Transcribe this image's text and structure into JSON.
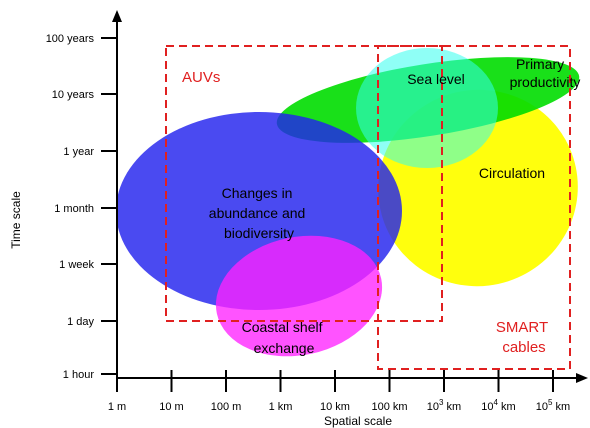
{
  "axes": {
    "y_label": "Time scale",
    "x_label": "Spatial scale",
    "y_ticks": [
      "1 hour",
      "1 day",
      "1 week",
      "1 month",
      "1 year",
      "10 years",
      "100 years"
    ],
    "x_ticks": [
      {
        "base": "1 m",
        "sup": ""
      },
      {
        "base": "10 m",
        "sup": ""
      },
      {
        "base": "100 m",
        "sup": ""
      },
      {
        "base": "1 km",
        "sup": ""
      },
      {
        "base": "10 km",
        "sup": ""
      },
      {
        "base": "100 km",
        "sup": ""
      },
      {
        "base": "10",
        "sup": "3",
        "unit": " km"
      },
      {
        "base": "10",
        "sup": "4",
        "unit": " km"
      },
      {
        "base": "10",
        "sup": "5",
        "unit": " km"
      }
    ]
  },
  "regions": {
    "circulation": {
      "label": "Circulation",
      "color": "#ffff00"
    },
    "primary_productivity": {
      "lines": [
        "Primary",
        "productivity"
      ],
      "color": "#00e000"
    },
    "sea_level": {
      "label": "Sea level",
      "color": "#33ffee"
    },
    "changes": {
      "lines": [
        "Changes in",
        "abundance and",
        "biodiversity"
      ],
      "color": "#2a2af0"
    },
    "coastal": {
      "lines": [
        "Coastal shelf",
        "exchange"
      ],
      "color": "#ff33ff"
    }
  },
  "boxes": {
    "auvs": {
      "label": "AUVs",
      "color": "#e02020"
    },
    "smart": {
      "lines": [
        "SMART",
        "cables"
      ],
      "color": "#e02020"
    }
  }
}
